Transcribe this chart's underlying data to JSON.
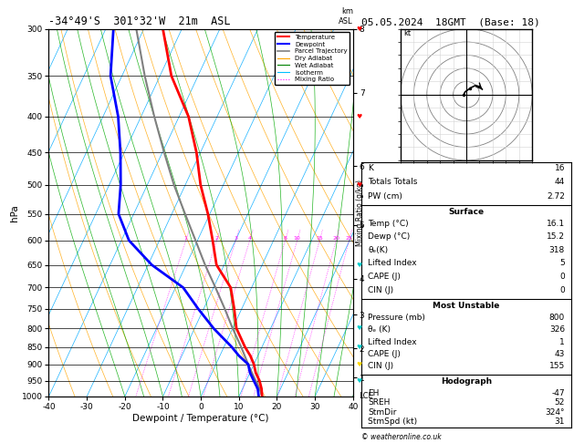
{
  "title_left": "-34°49'S  301°32'W  21m  ASL",
  "title_right": "05.05.2024  18GMT  (Base: 18)",
  "xlabel": "Dewpoint / Temperature (°C)",
  "ylabel_left": "hPa",
  "xmin": -40,
  "xmax": 40,
  "temp_profile": {
    "pressure": [
      1000,
      975,
      950,
      925,
      900,
      875,
      850,
      800,
      750,
      700,
      650,
      600,
      550,
      500,
      450,
      400,
      350,
      300
    ],
    "temp": [
      16.1,
      15.0,
      13.5,
      11.5,
      10.0,
      8.0,
      5.5,
      1.0,
      -2.0,
      -5.5,
      -12.0,
      -16.0,
      -20.5,
      -26.0,
      -31.0,
      -37.5,
      -47.0,
      -55.0
    ]
  },
  "dewp_profile": {
    "pressure": [
      1000,
      975,
      950,
      925,
      900,
      875,
      850,
      800,
      750,
      700,
      650,
      600,
      550,
      500,
      450,
      400,
      350,
      300
    ],
    "dewp": [
      15.2,
      14.0,
      12.0,
      10.0,
      8.5,
      5.0,
      2.0,
      -5.0,
      -11.5,
      -18.0,
      -29.0,
      -38.0,
      -44.0,
      -47.0,
      -51.0,
      -56.0,
      -63.0,
      -68.0
    ]
  },
  "parcel_profile": {
    "pressure": [
      1000,
      975,
      950,
      925,
      900,
      850,
      800,
      750,
      700,
      650,
      600,
      550,
      500,
      450,
      400,
      350,
      300
    ],
    "temp": [
      16.1,
      14.5,
      12.5,
      10.5,
      8.5,
      4.5,
      0.0,
      -4.5,
      -9.5,
      -15.0,
      -20.5,
      -26.5,
      -33.0,
      -39.5,
      -46.5,
      -54.0,
      -62.0
    ]
  },
  "pressure_levels": [
    300,
    350,
    400,
    450,
    500,
    550,
    600,
    650,
    700,
    750,
    800,
    850,
    900,
    950,
    1000
  ],
  "km_levels": {
    "8": 300,
    "7": 370,
    "6": 470,
    "5": 570,
    "4": 680,
    "3": 765,
    "2": 855,
    "1": 940
  },
  "colors": {
    "temperature": "#FF0000",
    "dewpoint": "#0000FF",
    "parcel": "#808080",
    "dry_adiabat": "#FFA500",
    "wet_adiabat": "#00AA00",
    "isotherm": "#00AAFF",
    "mixing_ratio": "#FF00FF",
    "background": "#FFFFFF"
  },
  "stats": {
    "K": "16",
    "Totals Totals": "44",
    "PW (cm)": "2.72",
    "surface_title": "Surface",
    "surf_temp": "16.1",
    "surf_dewp": "15.2",
    "surf_theta": "318",
    "surf_li": "5",
    "surf_cape": "0",
    "surf_cin": "0",
    "mu_title": "Most Unstable",
    "mu_pres": "800",
    "mu_theta": "326",
    "mu_li": "1",
    "mu_cape": "43",
    "mu_cin": "155",
    "hodo_title": "Hodograph",
    "hodo_eh": "-47",
    "hodo_sreh": "52",
    "hodo_stmdir": "324°",
    "hodo_stmspd": "31"
  },
  "wind_barbs": {
    "pressures": [
      300,
      400,
      500,
      650,
      800,
      850,
      900,
      950
    ],
    "colors": [
      "#FF0000",
      "#FF0000",
      "#FF0000",
      "#00CCCC",
      "#00CCCC",
      "#00CCCC",
      "#FFD700",
      "#00CCCC"
    ]
  },
  "hodo_trace": {
    "u": [
      -2,
      -1,
      3,
      7,
      10,
      12
    ],
    "v": [
      0,
      2,
      5,
      7,
      6,
      4
    ]
  },
  "hodo_dots": {
    "u": [
      -2,
      3,
      10
    ],
    "v": [
      0,
      5,
      6
    ]
  }
}
